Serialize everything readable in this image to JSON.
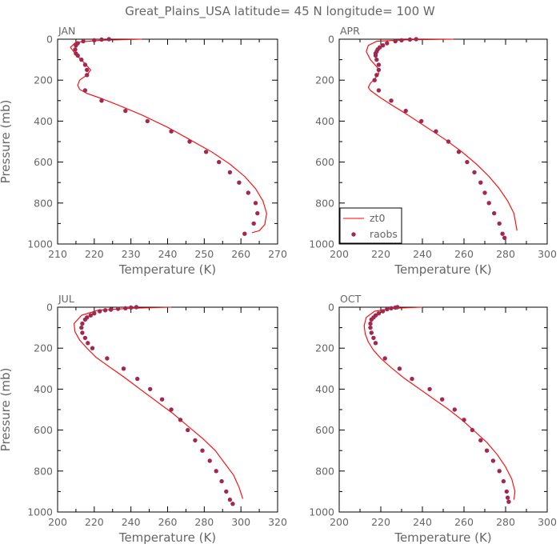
{
  "title": "Great_Plains_USA   latitude= 45 N longitude= 100 W",
  "colors": {
    "model": "#ff0000",
    "obs": "#a3284f",
    "axis": "#000000",
    "text": "#666666"
  },
  "legend": {
    "items": [
      "zt0",
      "raobs"
    ],
    "placement": "inside lower-left of APR panel"
  },
  "chart_data": [
    {
      "type": "line",
      "panel": "JAN",
      "xlabel": "Temperature (K)",
      "ylabel": "Pressure (mb)",
      "xlim": [
        210,
        270
      ],
      "ylim": [
        1000,
        0
      ],
      "xticks": [
        210,
        220,
        230,
        240,
        250,
        260,
        270
      ],
      "yticks": [
        0,
        200,
        400,
        600,
        800,
        1000
      ],
      "series": [
        {
          "name": "zt0",
          "style": "line",
          "x": [
            233,
            222,
            215,
            213.5,
            215,
            217,
            219,
            218,
            216,
            215.5,
            216,
            218,
            222,
            227,
            233,
            240,
            246,
            252,
            257,
            261,
            264,
            266,
            267,
            266.5,
            265,
            263
          ],
          "y": [
            0,
            5,
            15,
            40,
            75,
            110,
            150,
            175,
            200,
            225,
            245,
            265,
            290,
            325,
            370,
            430,
            490,
            550,
            610,
            670,
            730,
            790,
            850,
            905,
            935,
            945
          ]
        },
        {
          "name": "raobs",
          "style": "points",
          "x": [
            224,
            222,
            220,
            217,
            215.5,
            215,
            214.8,
            215,
            215.5,
            216.5,
            217.5,
            218,
            218,
            217.5,
            222,
            228.5,
            234.5,
            241,
            246,
            250.5,
            254,
            257,
            259.5,
            262,
            264,
            264.5,
            263.5,
            261
          ],
          "y": [
            0,
            2,
            5,
            10,
            20,
            30,
            50,
            70,
            80,
            100,
            125,
            150,
            175,
            250,
            300,
            350,
            400,
            450,
            500,
            550,
            600,
            650,
            700,
            750,
            800,
            850,
            900,
            950
          ]
        }
      ]
    },
    {
      "type": "line",
      "panel": "APR",
      "xlabel": "Temperature (K)",
      "ylabel": "",
      "xlim": [
        200,
        300
      ],
      "ylim": [
        1000,
        0
      ],
      "xticks": [
        200,
        220,
        240,
        260,
        280,
        300
      ],
      "yticks": [
        0,
        200,
        400,
        600,
        800,
        1000
      ],
      "series": [
        {
          "name": "zt0",
          "style": "line",
          "x": [
            255,
            232,
            218,
            214,
            213,
            215,
            218.5,
            219,
            217,
            215,
            214,
            215,
            219,
            225,
            233,
            242,
            251,
            259,
            266,
            272,
            277,
            281,
            284,
            285.5
          ],
          "y": [
            0,
            3,
            10,
            30,
            60,
            100,
            140,
            170,
            195,
            215,
            235,
            250,
            280,
            320,
            370,
            430,
            490,
            550,
            610,
            670,
            730,
            790,
            850,
            935
          ]
        },
        {
          "name": "raobs",
          "style": "points",
          "x": [
            237,
            234,
            230,
            227,
            223,
            221,
            219.5,
            218.5,
            218,
            217.5,
            217.5,
            218,
            219,
            219,
            218,
            217,
            219,
            225,
            232,
            239.5,
            246.5,
            252.5,
            257.5,
            261.5,
            265,
            268,
            270,
            272,
            274.5,
            277,
            278.5,
            279.5
          ],
          "y": [
            0,
            2,
            5,
            10,
            20,
            30,
            40,
            50,
            60,
            70,
            80,
            100,
            125,
            150,
            175,
            200,
            250,
            300,
            350,
            400,
            450,
            500,
            550,
            600,
            650,
            700,
            750,
            800,
            850,
            900,
            950,
            970
          ]
        }
      ]
    },
    {
      "type": "line",
      "panel": "JUL",
      "xlabel": "Temperature (K)",
      "ylabel": "Pressure (mb)",
      "xlim": [
        200,
        320
      ],
      "ylim": [
        1000,
        0
      ],
      "xticks": [
        200,
        220,
        240,
        260,
        280,
        300,
        320
      ],
      "yticks": [
        0,
        200,
        400,
        600,
        800,
        1000
      ],
      "series": [
        {
          "name": "zt0",
          "style": "line",
          "x": [
            262,
            240,
            222,
            213,
            209,
            209.5,
            212,
            216,
            221,
            228,
            236,
            245,
            254,
            263,
            271,
            279,
            286,
            291,
            296,
            299,
            301
          ],
          "y": [
            0,
            5,
            15,
            40,
            80,
            120,
            160,
            200,
            245,
            290,
            340,
            400,
            460,
            520,
            580,
            640,
            700,
            760,
            820,
            880,
            935
          ]
        },
        {
          "name": "raobs",
          "style": "points",
          "x": [
            243,
            240,
            237,
            233,
            229,
            226,
            223,
            220,
            218,
            216,
            215,
            213.5,
            213,
            213.5,
            215,
            216.5,
            219,
            227,
            236,
            243.5,
            250.5,
            257,
            262,
            267,
            271,
            275,
            279,
            283,
            286.5,
            289.5,
            292,
            294,
            295.5
          ],
          "y": [
            0,
            2,
            5,
            8,
            12,
            15,
            20,
            30,
            40,
            50,
            60,
            80,
            100,
            125,
            150,
            175,
            200,
            250,
            300,
            350,
            400,
            450,
            500,
            550,
            600,
            650,
            700,
            750,
            800,
            850,
            900,
            940,
            960
          ]
        }
      ]
    },
    {
      "type": "line",
      "panel": "OCT",
      "xlabel": "Temperature (K)",
      "ylabel": "",
      "xlim": [
        200,
        300
      ],
      "ylim": [
        1000,
        0
      ],
      "xticks": [
        200,
        220,
        240,
        260,
        280,
        300
      ],
      "yticks": [
        0,
        200,
        400,
        600,
        800,
        1000
      ],
      "series": [
        {
          "name": "zt0",
          "style": "line",
          "x": [
            240,
            226,
            217,
            213,
            212,
            212.5,
            214,
            216.5,
            220,
            225,
            231,
            238,
            245,
            252,
            259,
            265,
            271,
            276,
            280,
            283,
            284.5,
            284
          ],
          "y": [
            0,
            5,
            20,
            50,
            90,
            130,
            170,
            210,
            250,
            295,
            345,
            395,
            445,
            495,
            550,
            605,
            660,
            720,
            780,
            840,
            900,
            940
          ]
        },
        {
          "name": "raobs",
          "style": "points",
          "x": [
            228,
            227,
            225,
            223,
            221,
            219,
            217.5,
            216.5,
            215.5,
            215,
            215,
            215.5,
            216.5,
            217.5,
            222,
            229,
            235,
            243.5,
            249.5,
            255.5,
            260,
            264,
            268,
            271,
            274,
            277,
            279,
            280.5,
            281,
            281.5
          ],
          "y": [
            0,
            2,
            5,
            10,
            20,
            30,
            40,
            50,
            60,
            80,
            100,
            125,
            150,
            175,
            250,
            300,
            350,
            400,
            450,
            500,
            550,
            600,
            650,
            700,
            750,
            800,
            850,
            900,
            930,
            950
          ]
        }
      ]
    }
  ]
}
